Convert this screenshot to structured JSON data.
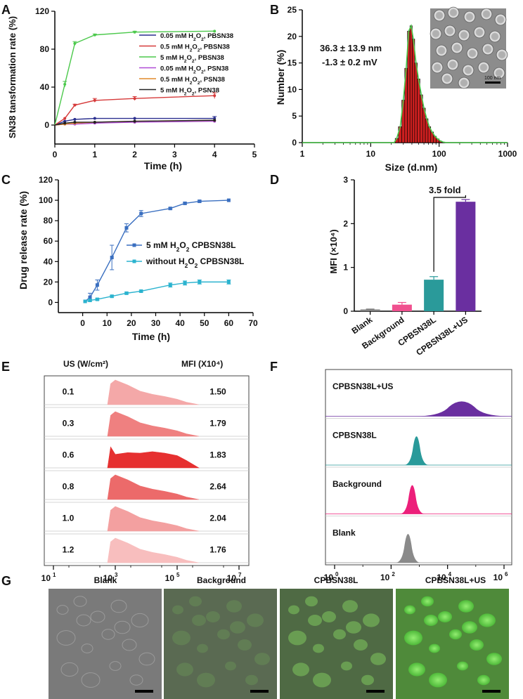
{
  "colors": {
    "green": "#4cc94c",
    "red": "#d63a3a",
    "navy": "#2a2f8f",
    "purple": "#b04cd6",
    "orange": "#e08a2a",
    "black": "#222222",
    "bar_red": "#cc1f1f",
    "blue": "#3a6fc0",
    "cyan": "#2bb3cf",
    "pink": "#f0508f",
    "teal": "#2a9a9a",
    "violet": "#6a2fa0",
    "gray": "#808080"
  },
  "panel_labels": [
    "A",
    "B",
    "C",
    "D",
    "E",
    "F",
    "G"
  ],
  "chart_data": [
    {
      "id": "A",
      "type": "line",
      "ylabel": "SN38 tansformation rate (%)",
      "xlabel": "Time (h)",
      "xlim": [
        0,
        5
      ],
      "ylim": [
        -20,
        120
      ],
      "xticks": [
        0,
        1,
        2,
        3,
        4,
        5
      ],
      "yticks": [
        0,
        40,
        80,
        120
      ],
      "x": [
        0,
        0.25,
        0.5,
        1,
        2,
        4
      ],
      "series": [
        {
          "name": "0.05 mM H2O2, PBSN38",
          "color": "navy",
          "values": [
            0,
            4,
            6,
            7,
            7,
            7
          ],
          "err": [
            0,
            0,
            0,
            0,
            0,
            2
          ]
        },
        {
          "name": "0.5 mM H2O2, PBSN38",
          "color": "red",
          "values": [
            0,
            7,
            21,
            26,
            28,
            31
          ],
          "err": [
            0,
            0,
            1,
            2,
            2,
            3
          ]
        },
        {
          "name": "5 mM H2O2, PBSN38",
          "color": "green",
          "values": [
            0,
            43,
            86,
            95,
            98,
            99
          ],
          "err": [
            0,
            3,
            2,
            1,
            1,
            0
          ]
        },
        {
          "name": "0.05 mM H2O2, PSN38",
          "color": "purple",
          "values": [
            0,
            1,
            1,
            2,
            3,
            4
          ],
          "err": [
            0,
            0,
            0,
            0,
            0,
            0
          ]
        },
        {
          "name": "0.5 mM H2O2, PSN38",
          "color": "orange",
          "values": [
            0,
            1,
            2,
            3,
            4,
            5
          ],
          "err": [
            0,
            0,
            0,
            0,
            0,
            0
          ]
        },
        {
          "name": "5 mM H2O2, PSN38",
          "color": "black",
          "values": [
            0,
            2,
            3,
            3,
            4,
            5
          ],
          "err": [
            0,
            0,
            0,
            0,
            0,
            0
          ]
        }
      ]
    },
    {
      "id": "B",
      "type": "bar",
      "ylabel": "Number  (%)",
      "xlabel": "Size (d.nm)",
      "xlim": [
        1,
        1000
      ],
      "xscale": "log",
      "ylim": [
        0,
        25
      ],
      "xticks": [
        "1",
        "10",
        "100",
        "1000"
      ],
      "yticks": [
        0,
        5,
        10,
        15,
        20,
        25
      ],
      "size": [
        24,
        27,
        30,
        33,
        36,
        39,
        42,
        46,
        50,
        55,
        60,
        66,
        72,
        79,
        87,
        95,
        105,
        115
      ],
      "values": [
        0.8,
        3,
        8,
        14,
        21,
        22,
        19.5,
        15,
        12,
        9,
        6.5,
        4.5,
        3,
        2,
        1.2,
        0.7,
        0.3,
        0.1
      ],
      "annotation_size": "36.3 ± 13.9 nm",
      "annotation_zeta": "-1.3 ± 0.2 mV",
      "scale_label": "100 nm"
    },
    {
      "id": "C",
      "type": "line",
      "ylabel": "Drug release rate (%)",
      "xlabel": "Time  (h)",
      "xlim": [
        -10,
        70
      ],
      "ylim": [
        -10,
        120
      ],
      "xticks": [
        0,
        10,
        20,
        30,
        40,
        50,
        60,
        70
      ],
      "yticks": [
        0,
        20,
        40,
        60,
        80,
        100,
        120
      ],
      "x": [
        1,
        3,
        6,
        12,
        18,
        24,
        36,
        42,
        48,
        60
      ],
      "series": [
        {
          "name": "5 mM H2O2 CPBSN38L",
          "color": "blue",
          "values": [
            1,
            5,
            17,
            44,
            73,
            87,
            92,
            97,
            99,
            100
          ],
          "err": [
            0,
            4,
            5,
            12,
            4,
            3,
            1,
            1,
            1,
            0
          ]
        },
        {
          "name": "without H2O2 CPBSN38L",
          "color": "cyan",
          "values": [
            1,
            2,
            3,
            6,
            9,
            11,
            17,
            19,
            20,
            20
          ],
          "err": [
            0,
            1,
            1,
            1,
            1,
            1,
            2,
            2,
            2,
            2
          ]
        }
      ]
    },
    {
      "id": "D",
      "type": "bar",
      "ylabel": "MFI (×10⁴)",
      "ylim": [
        0,
        3
      ],
      "yticks": [
        0,
        1,
        2,
        3
      ],
      "categories": [
        "Blank",
        "Background",
        "CPBSN38L",
        "CPBSN38L+US"
      ],
      "values": [
        0.04,
        0.15,
        0.72,
        2.5
      ],
      "err": [
        0.01,
        0.05,
        0.07,
        0.05
      ],
      "colors": [
        "gray",
        "pink",
        "teal",
        "violet"
      ],
      "annotation": "3.5 fold"
    },
    {
      "id": "E",
      "type": "histogram_stack",
      "col_left": "US (W/cm²)",
      "col_right": "MFI (X10⁴)",
      "rows": [
        {
          "us": "0.1",
          "mfi": "1.50",
          "color": "#f4a8a8"
        },
        {
          "us": "0.3",
          "mfi": "1.79",
          "color": "#ef8080"
        },
        {
          "us": "0.6",
          "mfi": "1.83",
          "color": "#e63030"
        },
        {
          "us": "0.8",
          "mfi": "2.64",
          "color": "#ec6a6a"
        },
        {
          "us": "1.0",
          "mfi": "2.04",
          "color": "#f3a0a0"
        },
        {
          "us": "1.2",
          "mfi": "1.76",
          "color": "#f8bebe"
        }
      ],
      "xtick_base": "10",
      "xtick_exp": [
        "1",
        "3",
        "5",
        "7"
      ]
    },
    {
      "id": "F",
      "type": "histogram_stack",
      "rows": [
        {
          "name": "CPBSN38L+US",
          "color": "#6a2fa0",
          "peak": 4.5
        },
        {
          "name": "CPBSN38L",
          "color": "#2a9a9a",
          "peak": 2.9
        },
        {
          "name": "Background",
          "color": "#ec1f7a",
          "peak": 2.75
        },
        {
          "name": "Blank",
          "color": "#8a8a8a",
          "peak": 2.6
        }
      ],
      "xtick_base": "10",
      "xtick_exp": [
        "0",
        "2",
        "4",
        "6"
      ]
    }
  ],
  "micrographs": {
    "labels": [
      "Blank",
      "Background",
      "CPBSN38L",
      "CPBSN38L+US"
    ]
  }
}
